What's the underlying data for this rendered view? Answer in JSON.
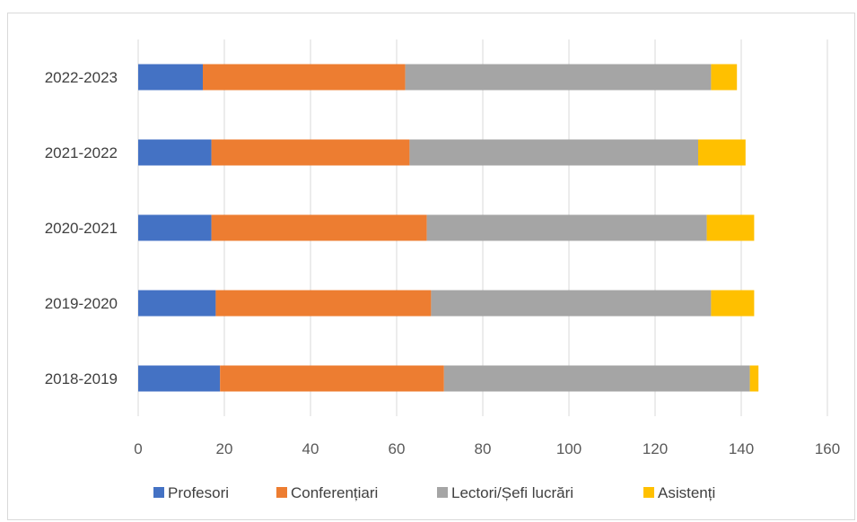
{
  "chart_data": {
    "type": "bar",
    "orientation": "horizontal",
    "stacked": true,
    "categories": [
      "2018-2019",
      "2019-2020",
      "2020-2021",
      "2021-2022",
      "2022-2023"
    ],
    "series": [
      {
        "name": "Profesori",
        "color": "#4472C4",
        "values": [
          19,
          18,
          17,
          17,
          15
        ]
      },
      {
        "name": "Conferențiari",
        "color": "#ED7D31",
        "values": [
          52,
          50,
          50,
          46,
          47
        ]
      },
      {
        "name": "Lectori/Șefi lucrări",
        "color": "#A5A5A5",
        "values": [
          71,
          65,
          65,
          67,
          71
        ]
      },
      {
        "name": "Asistenți",
        "color": "#FFC000",
        "values": [
          2,
          10,
          11,
          11,
          6
        ]
      }
    ],
    "xlim": [
      0,
      160
    ],
    "xticks": [
      "0",
      "20",
      "40",
      "60",
      "80",
      "100",
      "120",
      "140",
      "160"
    ],
    "grid": true,
    "legend_position": "bottom",
    "title": "",
    "xlabel": "",
    "ylabel": ""
  }
}
